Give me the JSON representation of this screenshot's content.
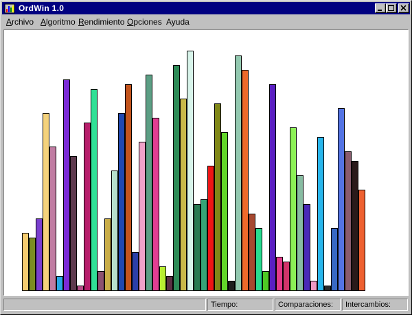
{
  "window": {
    "title": "OrdWin 1.0"
  },
  "menu": {
    "items": [
      {
        "label": "Archivo",
        "mnemonic": "A",
        "rest": "rchivo"
      },
      {
        "label": "Algoritmo",
        "mnemonic": "A",
        "rest": "lgoritmo"
      },
      {
        "label": "Rendimiento",
        "mnemonic": "R",
        "rest": "endimiento"
      },
      {
        "label": "Opciones",
        "mnemonic": "O",
        "rest": "pciones"
      },
      {
        "label": "Ayuda",
        "mnemonic": "Ayu",
        "prefix": "",
        "rest": "da"
      }
    ]
  },
  "status": {
    "main": "",
    "tiempo": "Tiempo:",
    "comparaciones": "Comparaciones:",
    "intercambios": "Intercambios:"
  },
  "chart_data": {
    "type": "bar",
    "ylim": [
      0,
      100
    ],
    "values": [
      24,
      22,
      30,
      74,
      60,
      6,
      88,
      56,
      2,
      70,
      84,
      8,
      30,
      50,
      74,
      86,
      16,
      62,
      90,
      72,
      10,
      6,
      94,
      80,
      100,
      36,
      38,
      52,
      78,
      66,
      4,
      98,
      92,
      32,
      26,
      8,
      86,
      14,
      12,
      68,
      48,
      36,
      4,
      64,
      2,
      26,
      76,
      58,
      54,
      42
    ],
    "colors": [
      "#f5cc70",
      "#7b8d22",
      "#7a3fcf",
      "#f4d27c",
      "#c07ca2",
      "#27a8e6",
      "#7b2bd6",
      "#5e3a4e",
      "#b54c87",
      "#b71e6b",
      "#31e096",
      "#8c5170",
      "#c9ad48",
      "#b8e0cc",
      "#2048b0",
      "#c4541c",
      "#2b3fa8",
      "#f1a2c9",
      "#5c9e84",
      "#e23e92",
      "#b8ee32",
      "#5a3042",
      "#2e8b57",
      "#c8b94a",
      "#d8f4ea",
      "#287a52",
      "#36a477",
      "#ee1515",
      "#808717",
      "#62d62a",
      "#1e1e1e",
      "#93c9b0",
      "#ee6a2a",
      "#a64830",
      "#28dc90",
      "#4eca24",
      "#5a1fc2",
      "#e43a8a",
      "#d1346a",
      "#8cf056",
      "#88bca2",
      "#4a29b8",
      "#ee9ac4",
      "#28b6ec",
      "#2a2a2a",
      "#3868c4",
      "#5474e4",
      "#8a5c6e",
      "#2a1a1a",
      "#ee6030"
    ]
  }
}
